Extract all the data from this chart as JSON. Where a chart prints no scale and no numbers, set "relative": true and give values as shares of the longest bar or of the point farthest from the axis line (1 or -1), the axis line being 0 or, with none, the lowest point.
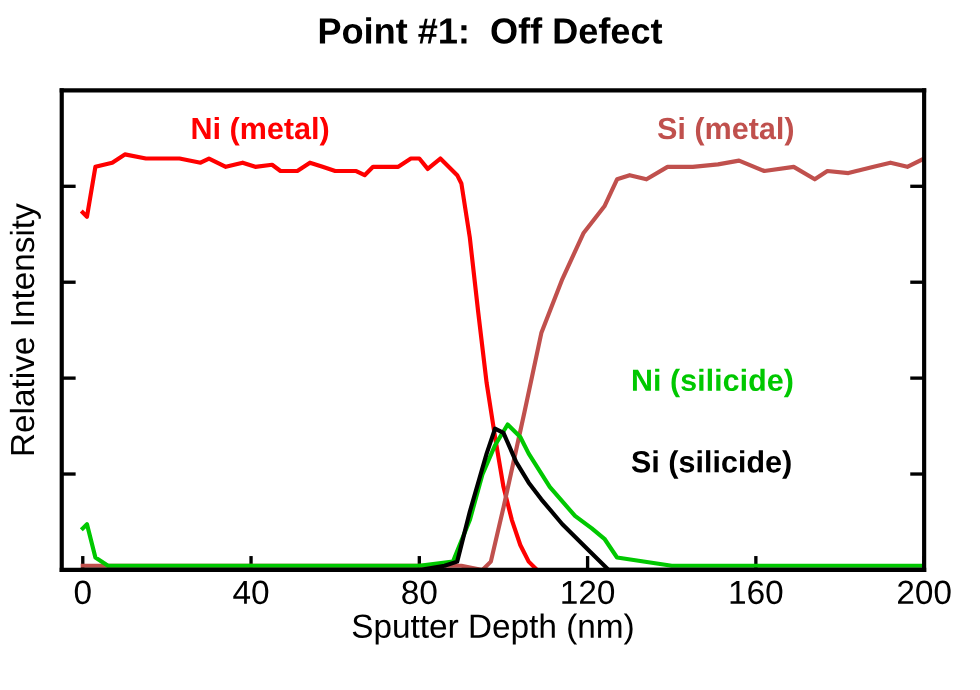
{
  "chart_data": {
    "type": "line",
    "title": "Point #1:  Off Defect",
    "xlabel": "Sputter Depth (nm)",
    "ylabel": "Relative Intensity",
    "relative": true,
    "xlim": [
      -5,
      200
    ],
    "xticks": [
      0,
      40,
      80,
      120,
      160,
      200
    ],
    "grid": false,
    "marker": "none",
    "line_style": "solid",
    "series": [
      {
        "name": "Ni (metal)",
        "color": "#ff0000",
        "x": [
          0,
          1,
          3,
          7,
          10,
          15,
          23,
          28,
          30,
          34,
          38,
          41,
          45,
          47,
          51,
          54,
          57,
          60,
          65,
          67,
          69,
          75,
          78,
          80,
          82,
          85,
          89,
          90,
          92,
          94,
          96,
          98,
          100,
          102,
          104,
          106,
          108
        ],
        "values": [
          0.86,
          0.85,
          0.97,
          0.98,
          1,
          0.99,
          0.99,
          0.98,
          0.99,
          0.97,
          0.98,
          0.97,
          0.975,
          0.96,
          0.96,
          0.98,
          0.97,
          0.96,
          0.96,
          0.95,
          0.97,
          0.97,
          0.99,
          0.99,
          0.965,
          0.99,
          0.95,
          0.93,
          0.8,
          0.62,
          0.45,
          0.32,
          0.2,
          0.12,
          0.06,
          0.02,
          0
        ]
      },
      {
        "name": "Si (metal)",
        "color": "#c0504d",
        "x": [
          0,
          20,
          40,
          60,
          80,
          90,
          95,
          97,
          100,
          105,
          109,
          114,
          119,
          124,
          127,
          130,
          134,
          139,
          145,
          151,
          156,
          162,
          169,
          174,
          177,
          182,
          188,
          192,
          196,
          200
        ],
        "values": [
          0.01,
          0.01,
          0.01,
          0.01,
          0.01,
          0.01,
          0,
          0.02,
          0.15,
          0.38,
          0.57,
          0.7,
          0.81,
          0.875,
          0.94,
          0.95,
          0.94,
          0.97,
          0.97,
          0.976,
          0.985,
          0.96,
          0.97,
          0.94,
          0.96,
          0.955,
          0.97,
          0.98,
          0.97,
          0.99
        ]
      },
      {
        "name": "Ni (silicide)",
        "color": "#00c800",
        "x": [
          0,
          1,
          3,
          6,
          20,
          40,
          60,
          80,
          88,
          92,
          95,
          98,
          101,
          104,
          106,
          111,
          117,
          121,
          124,
          127,
          140,
          160,
          180,
          200
        ],
        "values": [
          0.1,
          0.11,
          0.03,
          0.01,
          0.01,
          0.01,
          0.01,
          0.01,
          0.02,
          0.12,
          0.23,
          0.3,
          0.35,
          0.32,
          0.28,
          0.2,
          0.13,
          0.1,
          0.075,
          0.03,
          0.01,
          0.01,
          0.01,
          0.01
        ]
      },
      {
        "name": "Si (silicide)",
        "color": "#000000",
        "x": [
          0,
          20,
          40,
          60,
          80,
          86,
          89,
          92,
          96,
          98,
          100,
          103,
          106,
          109,
          114,
          120,
          125,
          140,
          160,
          180,
          200
        ],
        "values": [
          0,
          0,
          0,
          0,
          0,
          0.01,
          0.02,
          0.14,
          0.28,
          0.34,
          0.33,
          0.26,
          0.21,
          0.17,
          0.11,
          0.05,
          0,
          0,
          0,
          0,
          0
        ]
      }
    ]
  }
}
